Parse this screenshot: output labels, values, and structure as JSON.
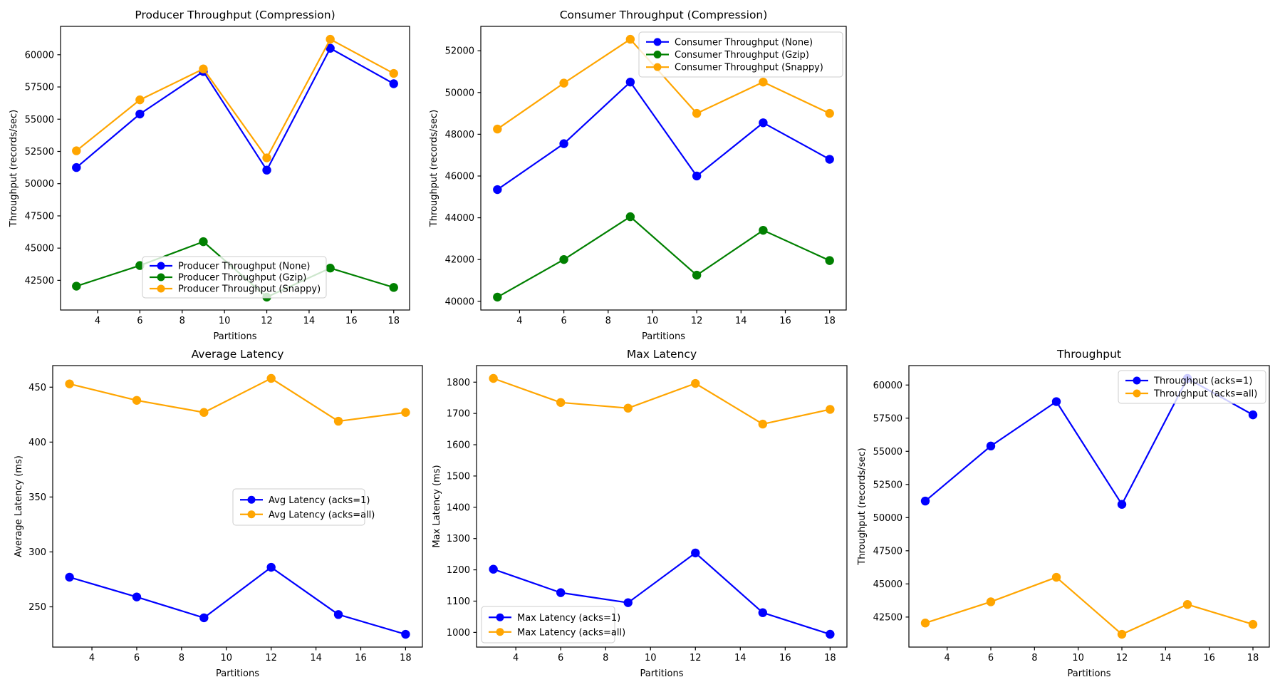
{
  "figure": {
    "background_color": "#ffffff",
    "series_colors": {
      "none_or_acks1": "#0000ff",
      "gzip": "#008000",
      "snappy_or_acksall": "#ffa500"
    }
  },
  "chart_data": [
    {
      "id": "producer-throughput",
      "type": "line",
      "title": "Producer Throughput (Compression)",
      "xlabel": "Partitions",
      "ylabel": "Throughput (records/sec)",
      "x": [
        3,
        6,
        9,
        12,
        15,
        18
      ],
      "xticks": [
        4,
        6,
        8,
        10,
        12,
        14,
        16,
        18
      ],
      "xlim": [
        2.25,
        18.75
      ],
      "yticks": [
        42500,
        45000,
        47500,
        50000,
        52500,
        55000,
        57500,
        60000
      ],
      "ylim": [
        40200,
        62200
      ],
      "grid": false,
      "legend_position": "lower center-left",
      "series": [
        {
          "name": "Producer Throughput (None)",
          "color": "#0000ff",
          "values": [
            51250,
            55400,
            58700,
            51050,
            60500,
            57750
          ]
        },
        {
          "name": "Producer Throughput (Gzip)",
          "color": "#008000",
          "values": [
            42050,
            43650,
            45500,
            41200,
            43450,
            41950
          ]
        },
        {
          "name": "Producer Throughput (Snappy)",
          "color": "#ffa500",
          "values": [
            52550,
            56500,
            58900,
            52000,
            61200,
            58550
          ]
        }
      ]
    },
    {
      "id": "consumer-throughput",
      "type": "line",
      "title": "Consumer Throughput (Compression)",
      "xlabel": "Partitions",
      "ylabel": "Throughput (records/sec)",
      "x": [
        3,
        6,
        9,
        12,
        15,
        18
      ],
      "xticks": [
        4,
        6,
        8,
        10,
        12,
        14,
        16,
        18
      ],
      "xlim": [
        2.25,
        18.75
      ],
      "yticks": [
        40000,
        42000,
        44000,
        46000,
        48000,
        50000,
        52000
      ],
      "ylim": [
        39582,
        53168
      ],
      "grid": false,
      "legend_position": "upper right",
      "series": [
        {
          "name": "Consumer Throughput (None)",
          "color": "#0000ff",
          "values": [
            45350,
            47550,
            50500,
            46000,
            48550,
            46800
          ]
        },
        {
          "name": "Consumer Throughput (Gzip)",
          "color": "#008000",
          "values": [
            40200,
            42000,
            44050,
            41250,
            43400,
            41950
          ]
        },
        {
          "name": "Consumer Throughput (Snappy)",
          "color": "#ffa500",
          "values": [
            48250,
            50450,
            52550,
            49000,
            50500,
            49000
          ]
        }
      ]
    },
    {
      "id": "avg-latency",
      "type": "line",
      "title": "Average Latency",
      "xlabel": "Partitions",
      "ylabel": "Average Latency (ms)",
      "x": [
        3,
        6,
        9,
        12,
        15,
        18
      ],
      "xticks": [
        4,
        6,
        8,
        10,
        12,
        14,
        16,
        18
      ],
      "xlim": [
        2.25,
        18.75
      ],
      "yticks": [
        250,
        300,
        350,
        400,
        450
      ],
      "ylim": [
        213.35,
        469.65
      ],
      "grid": false,
      "legend_position": "center right",
      "series": [
        {
          "name": "Avg Latency (acks=1)",
          "color": "#0000ff",
          "values": [
            277,
            259,
            240,
            286,
            243,
            225
          ]
        },
        {
          "name": "Avg Latency (acks=all)",
          "color": "#ffa500",
          "values": [
            453,
            438,
            427,
            458,
            419,
            427
          ]
        }
      ]
    },
    {
      "id": "max-latency",
      "type": "line",
      "title": "Max Latency",
      "xlabel": "Partitions",
      "ylabel": "Max Latency (ms)",
      "x": [
        3,
        6,
        9,
        12,
        15,
        18
      ],
      "xticks": [
        4,
        6,
        8,
        10,
        12,
        14,
        16,
        18
      ],
      "xlim": [
        2.25,
        18.75
      ],
      "yticks": [
        1000,
        1100,
        1200,
        1300,
        1400,
        1500,
        1600,
        1700,
        1800
      ],
      "ylim": [
        953,
        1853
      ],
      "grid": false,
      "legend_position": "lower left",
      "series": [
        {
          "name": "Max Latency (acks=1)",
          "color": "#0000ff",
          "values": [
            1202,
            1127,
            1095,
            1254,
            1063,
            994
          ]
        },
        {
          "name": "Max Latency (acks=all)",
          "color": "#ffa500",
          "values": [
            1812,
            1735,
            1717,
            1796,
            1666,
            1713
          ]
        }
      ]
    },
    {
      "id": "throughput",
      "type": "line",
      "title": "Throughput",
      "xlabel": "Partitions",
      "ylabel": "Throughput (records/sec)",
      "x": [
        3,
        6,
        9,
        12,
        15,
        18
      ],
      "xticks": [
        4,
        6,
        8,
        10,
        12,
        14,
        16,
        18
      ],
      "xlim": [
        2.25,
        18.75
      ],
      "yticks": [
        42500,
        45000,
        47500,
        50000,
        52500,
        55000,
        57500,
        60000
      ],
      "ylim": [
        40235,
        61465
      ],
      "grid": false,
      "legend_position": "upper right",
      "series": [
        {
          "name": "Throughput (acks=1)",
          "color": "#0000ff",
          "values": [
            51250,
            55400,
            58750,
            51000,
            60500,
            57750
          ]
        },
        {
          "name": "Throughput (acks=all)",
          "color": "#ffa500",
          "values": [
            42050,
            43650,
            45500,
            41200,
            43450,
            41950
          ]
        }
      ]
    }
  ]
}
